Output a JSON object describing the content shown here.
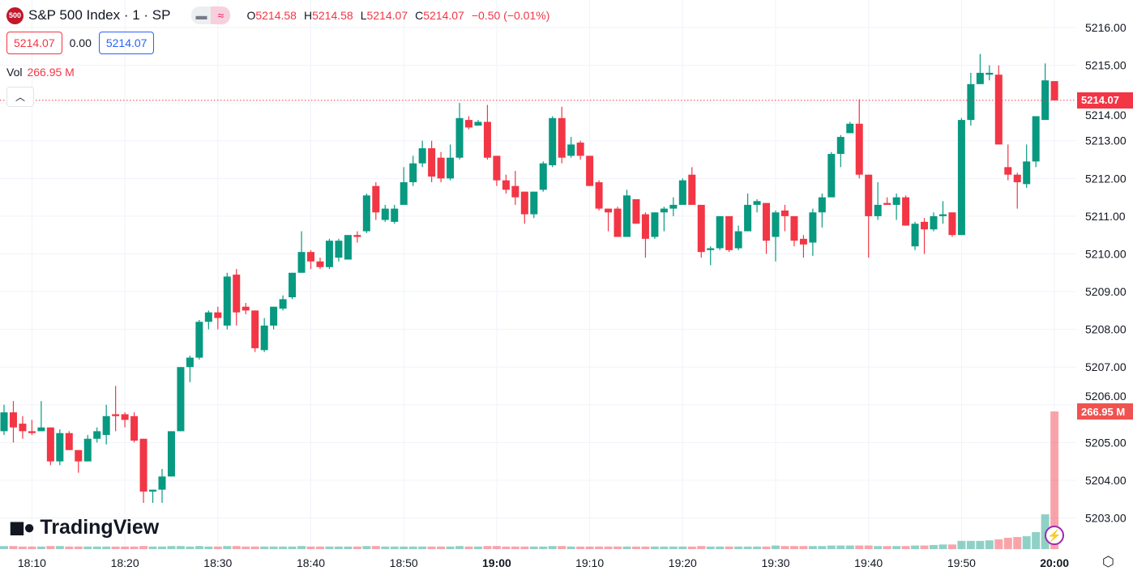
{
  "header": {
    "symbol_badge": "500",
    "title": "S&P 500 Index · 1 · SP",
    "ohlc": {
      "o_label": "O",
      "o": "5214.58",
      "h_label": "H",
      "h": "5214.58",
      "l_label": "L",
      "l": "5214.07",
      "c_label": "C",
      "c": "5214.07",
      "change": "−0.50 (−0.01%)"
    },
    "sell_price": "5214.07",
    "spread": "0.00",
    "buy_price": "5214.07",
    "vol_label": "Vol",
    "vol_value": "266.95 M"
  },
  "logo_text": "TradingView",
  "price_tag": "5214.07",
  "volume_tag": "266.95 M",
  "colors": {
    "up": "#089981",
    "down": "#f23645",
    "grid": "#f0f3fa",
    "accent": "#2962ff"
  },
  "icons": {
    "collapse": "chevron-up-icon",
    "replay": "lightning-icon",
    "settings": "gear-icon"
  },
  "chart_data": {
    "type": "candlestick",
    "symbol": "S&P 500 Index",
    "interval": "1",
    "ylim": [
      5202.3,
      5216.3
    ],
    "y_ticks": [
      "5216.00",
      "5215.00",
      "5214.00",
      "5213.00",
      "5212.00",
      "5211.00",
      "5210.00",
      "5209.00",
      "5208.00",
      "5207.00",
      "5206.00",
      "5205.00",
      "5204.00",
      "5203.00"
    ],
    "x_ticks": [
      "18:10",
      "18:20",
      "18:30",
      "18:40",
      "18:50",
      "19:00",
      "19:10",
      "19:20",
      "19:30",
      "19:40",
      "19:50",
      "20:00"
    ],
    "grid": true,
    "volume_max_m": 266.95,
    "columns": [
      "time",
      "open",
      "high",
      "low",
      "close",
      "volume_m"
    ],
    "candles": [
      [
        "18:07",
        5205.3,
        5206.0,
        5205.2,
        5205.8,
        6
      ],
      [
        "18:08",
        5205.8,
        5206.1,
        5205.0,
        5205.4,
        6
      ],
      [
        "18:09",
        5205.5,
        5205.7,
        5205.1,
        5205.3,
        5
      ],
      [
        "18:10",
        5205.3,
        5205.6,
        5205.2,
        5205.25,
        5
      ],
      [
        "18:11",
        5205.3,
        5206.1,
        5205.3,
        5205.4,
        5
      ],
      [
        "18:12",
        5205.4,
        5205.4,
        5204.4,
        5204.5,
        6
      ],
      [
        "18:13",
        5204.5,
        5205.35,
        5204.4,
        5205.25,
        6
      ],
      [
        "18:14",
        5205.25,
        5205.3,
        5204.8,
        5204.8,
        5
      ],
      [
        "18:15",
        5204.8,
        5204.8,
        5204.2,
        5204.5,
        5
      ],
      [
        "18:16",
        5204.5,
        5205.2,
        5204.5,
        5205.1,
        5
      ],
      [
        "18:17",
        5205.1,
        5205.4,
        5205.0,
        5205.3,
        5
      ],
      [
        "18:18",
        5205.2,
        5206.0,
        5204.95,
        5205.7,
        5
      ],
      [
        "18:19",
        5205.75,
        5206.5,
        5205.3,
        5205.7,
        5
      ],
      [
        "18:20",
        5205.75,
        5205.8,
        5205.4,
        5205.6,
        5
      ],
      [
        "18:21",
        5205.7,
        5205.8,
        5205.0,
        5205.05,
        5
      ],
      [
        "18:22",
        5205.1,
        5205.1,
        5203.4,
        5203.7,
        6
      ],
      [
        "18:23",
        5203.7,
        5203.75,
        5203.4,
        5203.75,
        5
      ],
      [
        "18:24",
        5203.75,
        5204.3,
        5203.4,
        5204.1,
        5
      ],
      [
        "18:25",
        5204.1,
        5205.3,
        5204.1,
        5205.3,
        6
      ],
      [
        "18:26",
        5205.3,
        5207.0,
        5205.3,
        5207.0,
        6
      ],
      [
        "18:27",
        5207.0,
        5207.3,
        5206.6,
        5207.25,
        5
      ],
      [
        "18:28",
        5207.25,
        5208.25,
        5207.2,
        5208.2,
        6
      ],
      [
        "18:29",
        5208.2,
        5208.5,
        5208.0,
        5208.45,
        5
      ],
      [
        "18:30",
        5208.45,
        5208.6,
        5208.0,
        5208.3,
        5
      ],
      [
        "18:31",
        5208.1,
        5209.5,
        5208.0,
        5209.4,
        6
      ],
      [
        "18:32",
        5209.45,
        5209.6,
        5208.1,
        5208.45,
        6
      ],
      [
        "18:33",
        5208.6,
        5208.7,
        5208.4,
        5208.5,
        5
      ],
      [
        "18:34",
        5208.5,
        5208.5,
        5207.4,
        5207.5,
        5
      ],
      [
        "18:35",
        5207.45,
        5208.3,
        5207.4,
        5208.1,
        5
      ],
      [
        "18:36",
        5208.1,
        5208.6,
        5208.0,
        5208.6,
        5
      ],
      [
        "18:37",
        5208.55,
        5208.9,
        5208.5,
        5208.8,
        5
      ],
      [
        "18:38",
        5208.85,
        5209.5,
        5208.8,
        5209.5,
        5
      ],
      [
        "18:39",
        5209.5,
        5210.6,
        5209.5,
        5210.05,
        6
      ],
      [
        "18:40",
        5210.05,
        5210.1,
        5209.6,
        5209.8,
        5
      ],
      [
        "18:41",
        5209.8,
        5209.9,
        5209.6,
        5209.65,
        5
      ],
      [
        "18:42",
        5209.65,
        5210.4,
        5209.6,
        5210.35,
        5
      ],
      [
        "18:43",
        5209.9,
        5210.4,
        5209.8,
        5210.35,
        5
      ],
      [
        "18:44",
        5209.85,
        5210.5,
        5209.85,
        5210.5,
        5
      ],
      [
        "18:45",
        5210.5,
        5210.6,
        5210.3,
        5210.45,
        5
      ],
      [
        "18:46",
        5210.6,
        5211.6,
        5210.55,
        5211.55,
        6
      ],
      [
        "18:47",
        5211.8,
        5211.9,
        5210.9,
        5211.1,
        6
      ],
      [
        "18:48",
        5210.9,
        5211.3,
        5210.85,
        5211.2,
        5
      ],
      [
        "18:49",
        5210.85,
        5211.3,
        5210.8,
        5211.2,
        5
      ],
      [
        "18:50",
        5211.3,
        5212.3,
        5211.3,
        5211.9,
        5
      ],
      [
        "18:51",
        5211.9,
        5212.6,
        5211.8,
        5212.4,
        5
      ],
      [
        "18:52",
        5212.4,
        5213.0,
        5212.3,
        5212.8,
        5
      ],
      [
        "18:53",
        5212.8,
        5213.0,
        5211.9,
        5212.05,
        5
      ],
      [
        "18:54",
        5212.55,
        5212.7,
        5211.9,
        5212.0,
        5
      ],
      [
        "18:55",
        5212.0,
        5212.9,
        5211.95,
        5212.55,
        5
      ],
      [
        "18:56",
        5212.55,
        5214.0,
        5212.5,
        5213.6,
        6
      ],
      [
        "18:57",
        5213.55,
        5213.65,
        5213.3,
        5213.35,
        5
      ],
      [
        "18:58",
        5213.4,
        5213.55,
        5213.4,
        5213.5,
        5
      ],
      [
        "18:59",
        5213.5,
        5213.95,
        5212.5,
        5212.55,
        6
      ],
      [
        "19:00",
        5212.6,
        5212.6,
        5211.8,
        5211.95,
        6
      ],
      [
        "19:01",
        5211.95,
        5212.1,
        5211.6,
        5211.7,
        5
      ],
      [
        "19:02",
        5211.8,
        5212.2,
        5211.3,
        5211.5,
        5
      ],
      [
        "19:03",
        5211.65,
        5211.65,
        5210.8,
        5211.05,
        5
      ],
      [
        "19:04",
        5211.05,
        5211.65,
        5210.95,
        5211.65,
        5
      ],
      [
        "19:05",
        5211.7,
        5212.45,
        5211.65,
        5212.4,
        5
      ],
      [
        "19:06",
        5212.35,
        5213.65,
        5212.3,
        5213.6,
        6
      ],
      [
        "19:07",
        5213.6,
        5213.9,
        5212.4,
        5212.55,
        6
      ],
      [
        "19:08",
        5212.6,
        5213.1,
        5212.55,
        5212.9,
        5
      ],
      [
        "19:09",
        5212.95,
        5213.0,
        5212.5,
        5212.6,
        5
      ],
      [
        "19:10",
        5212.6,
        5212.6,
        5211.8,
        5211.8,
        5
      ],
      [
        "19:11",
        5211.9,
        5211.95,
        5211.15,
        5211.2,
        5
      ],
      [
        "19:12",
        5211.2,
        5211.2,
        5210.6,
        5211.1,
        5
      ],
      [
        "19:13",
        5211.2,
        5211.25,
        5210.45,
        5210.45,
        5
      ],
      [
        "19:14",
        5210.45,
        5211.7,
        5210.45,
        5211.55,
        5
      ],
      [
        "19:15",
        5211.45,
        5211.45,
        5210.8,
        5210.8,
        5
      ],
      [
        "19:16",
        5211.05,
        5211.1,
        5209.9,
        5210.4,
        5
      ],
      [
        "19:17",
        5210.45,
        5211.1,
        5210.4,
        5211.1,
        5
      ],
      [
        "19:18",
        5211.1,
        5211.25,
        5210.6,
        5211.2,
        5
      ],
      [
        "19:19",
        5211.2,
        5211.5,
        5211.0,
        5211.3,
        5
      ],
      [
        "19:20",
        5211.3,
        5212.0,
        5211.3,
        5211.95,
        5
      ],
      [
        "19:21",
        5212.1,
        5212.3,
        5211.3,
        5211.3,
        5
      ],
      [
        "19:22",
        5211.3,
        5211.3,
        5209.9,
        5210.05,
        6
      ],
      [
        "19:23",
        5210.1,
        5210.2,
        5209.7,
        5210.15,
        5
      ],
      [
        "19:24",
        5210.15,
        5211.0,
        5210.1,
        5211.0,
        5
      ],
      [
        "19:25",
        5211.0,
        5211.0,
        5210.05,
        5210.1,
        5
      ],
      [
        "19:26",
        5210.15,
        5210.75,
        5210.1,
        5210.6,
        5
      ],
      [
        "19:27",
        5210.6,
        5211.6,
        5210.6,
        5211.3,
        5
      ],
      [
        "19:28",
        5211.3,
        5211.45,
        5211.1,
        5211.4,
        5
      ],
      [
        "19:29",
        5211.35,
        5211.35,
        5210.0,
        5210.35,
        5
      ],
      [
        "19:30",
        5210.45,
        5211.15,
        5209.8,
        5211.1,
        7
      ],
      [
        "19:31",
        5211.15,
        5211.3,
        5210.6,
        5211.0,
        6
      ],
      [
        "19:32",
        5211.0,
        5211.0,
        5210.2,
        5210.35,
        6
      ],
      [
        "19:33",
        5210.4,
        5210.5,
        5209.9,
        5210.25,
        6
      ],
      [
        "19:34",
        5210.3,
        5211.2,
        5209.95,
        5211.1,
        6
      ],
      [
        "19:35",
        5211.1,
        5211.6,
        5210.7,
        5211.5,
        6
      ],
      [
        "19:36",
        5211.5,
        5212.7,
        5211.5,
        5212.65,
        7
      ],
      [
        "19:37",
        5212.65,
        5213.15,
        5212.3,
        5213.1,
        7
      ],
      [
        "19:38",
        5213.2,
        5213.5,
        5213.2,
        5213.45,
        7
      ],
      [
        "19:39",
        5213.45,
        5214.1,
        5212.0,
        5212.1,
        7
      ],
      [
        "19:40",
        5212.1,
        5212.1,
        5209.9,
        5211.0,
        7
      ],
      [
        "19:41",
        5211.0,
        5211.9,
        5210.9,
        5211.3,
        6
      ],
      [
        "19:42",
        5211.35,
        5211.5,
        5211.3,
        5211.3,
        6
      ],
      [
        "19:43",
        5211.3,
        5211.6,
        5210.9,
        5211.5,
        6
      ],
      [
        "19:44",
        5211.5,
        5211.55,
        5210.75,
        5210.75,
        6
      ],
      [
        "19:45",
        5210.2,
        5210.85,
        5210.1,
        5210.8,
        7
      ],
      [
        "19:46",
        5210.85,
        5210.95,
        5210.0,
        5210.65,
        7
      ],
      [
        "19:47",
        5210.65,
        5211.1,
        5210.6,
        5211.0,
        8
      ],
      [
        "19:48",
        5211.0,
        5211.4,
        5210.8,
        5211.05,
        9
      ],
      [
        "19:49",
        5211.1,
        5211.1,
        5210.45,
        5210.5,
        9
      ],
      [
        "19:50",
        5210.5,
        5213.6,
        5210.5,
        5213.55,
        16
      ],
      [
        "19:51",
        5213.55,
        5214.8,
        5213.4,
        5214.5,
        16
      ],
      [
        "19:52",
        5214.5,
        5215.3,
        5214.5,
        5214.8,
        16
      ],
      [
        "19:53",
        5214.75,
        5215.0,
        5214.6,
        5214.8,
        17
      ],
      [
        "19:54",
        5214.75,
        5215.0,
        5212.9,
        5212.9,
        19
      ],
      [
        "19:55",
        5212.3,
        5212.9,
        5211.95,
        5212.1,
        22
      ],
      [
        "19:56",
        5212.1,
        5212.15,
        5211.2,
        5211.9,
        23.5
      ],
      [
        "19:57",
        5211.85,
        5212.9,
        5211.75,
        5212.45,
        25
      ],
      [
        "19:58",
        5212.45,
        5213.65,
        5212.3,
        5213.65,
        33
      ],
      [
        "19:59",
        5213.55,
        5215.05,
        5213.55,
        5214.6,
        67.5
      ],
      [
        "20:00",
        5214.58,
        5214.58,
        5214.07,
        5214.07,
        266.95
      ]
    ]
  }
}
